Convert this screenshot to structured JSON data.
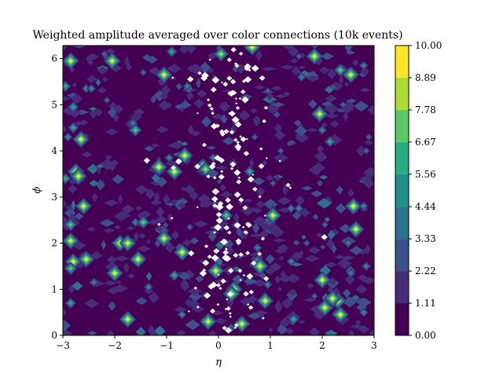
{
  "chart_data": {
    "type": "heatmap",
    "title": "Weighted amplitude averaged over color connections (10k events)",
    "xlabel": "η",
    "ylabel": "ϕ",
    "xlim": [
      -3,
      3
    ],
    "ylim": [
      0,
      6.283
    ],
    "x_ticks": [
      -3,
      -2,
      -1,
      0,
      1,
      2,
      3
    ],
    "x_tick_labels": [
      "−3",
      "−2",
      "−1",
      "0",
      "1",
      "2",
      "3"
    ],
    "y_ticks": [
      0,
      1,
      2,
      3,
      4,
      5,
      6
    ],
    "y_tick_labels": [
      "0",
      "1",
      "2",
      "3",
      "4",
      "5",
      "6"
    ],
    "colorbar": {
      "levels": [
        0.0,
        1.11,
        2.22,
        3.33,
        4.44,
        5.56,
        6.67,
        7.78,
        8.89,
        10.0
      ],
      "level_labels": [
        "0.00",
        "1.11",
        "2.22",
        "3.33",
        "4.44",
        "5.56",
        "6.67",
        "7.78",
        "8.89",
        "10.00"
      ],
      "colors": [
        "#440154",
        "#472c7a",
        "#3b518b",
        "#2c718e",
        "#21908d",
        "#27ad81",
        "#5cc863",
        "#aadc32",
        "#fde725"
      ]
    },
    "background_level": 0,
    "hotspots": [
      {
        "x": -2.85,
        "y": 5.95,
        "level": 8
      },
      {
        "x": -2.2,
        "y": 6.1,
        "level": 3
      },
      {
        "x": -2.05,
        "y": 5.95,
        "level": 8
      },
      {
        "x": -1.45,
        "y": 5.7,
        "level": 3
      },
      {
        "x": -1.05,
        "y": 5.65,
        "level": 8
      },
      {
        "x": -0.9,
        "y": 6.15,
        "level": 5
      },
      {
        "x": 0.05,
        "y": 6.1,
        "level": 7
      },
      {
        "x": 0.65,
        "y": 6.25,
        "level": 8
      },
      {
        "x": 1.55,
        "y": 6.05,
        "level": 3
      },
      {
        "x": 1.6,
        "y": 5.6,
        "level": 4
      },
      {
        "x": 1.85,
        "y": 6.05,
        "level": 8
      },
      {
        "x": 2.35,
        "y": 5.75,
        "level": 6
      },
      {
        "x": 2.55,
        "y": 5.65,
        "level": 8
      },
      {
        "x": 2.8,
        "y": 5.85,
        "level": 4
      },
      {
        "x": -2.95,
        "y": 5.4,
        "level": 5
      },
      {
        "x": -2.55,
        "y": 5.35,
        "level": 4
      },
      {
        "x": -2.45,
        "y": 5.35,
        "level": 4
      },
      {
        "x": -2.15,
        "y": 5.1,
        "level": 3
      },
      {
        "x": -0.6,
        "y": 5.4,
        "level": 4
      },
      {
        "x": 0.95,
        "y": 5.3,
        "level": 3
      },
      {
        "x": 1.95,
        "y": 4.8,
        "level": 8
      },
      {
        "x": 2.4,
        "y": 5.0,
        "level": 3
      },
      {
        "x": -2.8,
        "y": 4.95,
        "level": 5
      },
      {
        "x": -2.8,
        "y": 4.5,
        "level": 5
      },
      {
        "x": -2.9,
        "y": 4.3,
        "level": 4
      },
      {
        "x": -2.65,
        "y": 4.25,
        "level": 8
      },
      {
        "x": -1.65,
        "y": 4.6,
        "level": 4
      },
      {
        "x": -1.6,
        "y": 4.45,
        "level": 6
      },
      {
        "x": 0.7,
        "y": 4.3,
        "level": 3
      },
      {
        "x": 1.2,
        "y": 4.0,
        "level": 3
      },
      {
        "x": 2.0,
        "y": 4.45,
        "level": 4
      },
      {
        "x": 2.15,
        "y": 4.2,
        "level": 5
      },
      {
        "x": 2.85,
        "y": 4.0,
        "level": 3
      },
      {
        "x": 2.9,
        "y": 4.3,
        "level": 3
      },
      {
        "x": -2.75,
        "y": 3.55,
        "level": 8
      },
      {
        "x": -2.7,
        "y": 3.45,
        "level": 8
      },
      {
        "x": -2.95,
        "y": 3.4,
        "level": 5
      },
      {
        "x": -1.15,
        "y": 3.65,
        "level": 8
      },
      {
        "x": -0.85,
        "y": 3.55,
        "level": 8
      },
      {
        "x": -0.95,
        "y": 3.85,
        "level": 4
      },
      {
        "x": -0.65,
        "y": 3.9,
        "level": 8
      },
      {
        "x": -0.3,
        "y": 3.7,
        "level": 6
      },
      {
        "x": -0.25,
        "y": 3.6,
        "level": 7
      },
      {
        "x": -0.1,
        "y": 3.85,
        "level": 4
      },
      {
        "x": 0.6,
        "y": 3.55,
        "level": 5
      },
      {
        "x": 1.05,
        "y": 3.3,
        "level": 3
      },
      {
        "x": -2.6,
        "y": 2.8,
        "level": 8
      },
      {
        "x": -2.85,
        "y": 2.4,
        "level": 6
      },
      {
        "x": -1.6,
        "y": 2.45,
        "level": 4
      },
      {
        "x": -1.45,
        "y": 2.45,
        "level": 6
      },
      {
        "x": -1.05,
        "y": 2.25,
        "level": 4
      },
      {
        "x": -0.55,
        "y": 2.35,
        "level": 3
      },
      {
        "x": 0.15,
        "y": 2.6,
        "level": 6
      },
      {
        "x": 0.95,
        "y": 2.5,
        "level": 3
      },
      {
        "x": 1.05,
        "y": 2.6,
        "level": 8
      },
      {
        "x": 1.4,
        "y": 2.75,
        "level": 4
      },
      {
        "x": 1.55,
        "y": 2.75,
        "level": 4
      },
      {
        "x": 2.05,
        "y": 2.4,
        "level": 3
      },
      {
        "x": 2.6,
        "y": 2.8,
        "level": 8
      },
      {
        "x": 2.8,
        "y": 2.8,
        "level": 4
      },
      {
        "x": 2.65,
        "y": 2.3,
        "level": 8
      },
      {
        "x": -2.85,
        "y": 2.05,
        "level": 8
      },
      {
        "x": -1.9,
        "y": 2.0,
        "level": 8
      },
      {
        "x": -1.75,
        "y": 2.0,
        "level": 8
      },
      {
        "x": -1.05,
        "y": 2.1,
        "level": 8
      },
      {
        "x": -0.75,
        "y": 1.9,
        "level": 4
      },
      {
        "x": 0.15,
        "y": 2.0,
        "level": 4
      },
      {
        "x": 0.75,
        "y": 1.9,
        "level": 4
      },
      {
        "x": 1.7,
        "y": 2.0,
        "level": 3
      },
      {
        "x": 2.5,
        "y": 2.0,
        "level": 4
      },
      {
        "x": -2.8,
        "y": 1.6,
        "level": 8
      },
      {
        "x": -2.85,
        "y": 1.45,
        "level": 6
      },
      {
        "x": -2.55,
        "y": 1.65,
        "level": 8
      },
      {
        "x": -1.55,
        "y": 1.65,
        "level": 8
      },
      {
        "x": -0.7,
        "y": 1.8,
        "level": 8
      },
      {
        "x": -0.05,
        "y": 1.4,
        "level": 8
      },
      {
        "x": 0.75,
        "y": 1.55,
        "level": 8
      },
      {
        "x": 0.8,
        "y": 1.5,
        "level": 8
      },
      {
        "x": 1.4,
        "y": 1.6,
        "level": 4
      },
      {
        "x": 2.0,
        "y": 1.2,
        "level": 8
      },
      {
        "x": 2.55,
        "y": 1.35,
        "level": 4
      },
      {
        "x": 2.85,
        "y": 1.5,
        "level": 4
      },
      {
        "x": -2.4,
        "y": 1.15,
        "level": 4
      },
      {
        "x": -2.0,
        "y": 1.35,
        "level": 8
      },
      {
        "x": -1.35,
        "y": 1.05,
        "level": 4
      },
      {
        "x": -0.85,
        "y": 1.3,
        "level": 5
      },
      {
        "x": 0.3,
        "y": 1.0,
        "level": 8
      },
      {
        "x": 0.25,
        "y": 0.9,
        "level": 8
      },
      {
        "x": 0.95,
        "y": 1.1,
        "level": 4
      },
      {
        "x": 1.85,
        "y": 0.85,
        "level": 3
      },
      {
        "x": 2.3,
        "y": 0.75,
        "level": 8
      },
      {
        "x": 2.2,
        "y": 0.8,
        "level": 8
      },
      {
        "x": -2.85,
        "y": 0.7,
        "level": 5
      },
      {
        "x": -1.75,
        "y": 0.35,
        "level": 8
      },
      {
        "x": -0.7,
        "y": 0.45,
        "level": 4
      },
      {
        "x": -0.2,
        "y": 0.3,
        "level": 8
      },
      {
        "x": 0.45,
        "y": 0.25,
        "level": 8
      },
      {
        "x": 0.9,
        "y": 0.75,
        "level": 8
      },
      {
        "x": 1.45,
        "y": 0.35,
        "level": 5
      },
      {
        "x": 2.05,
        "y": 0.6,
        "level": 8
      },
      {
        "x": 2.35,
        "y": 0.45,
        "level": 8
      },
      {
        "x": 2.8,
        "y": 0.5,
        "level": 4
      }
    ]
  }
}
